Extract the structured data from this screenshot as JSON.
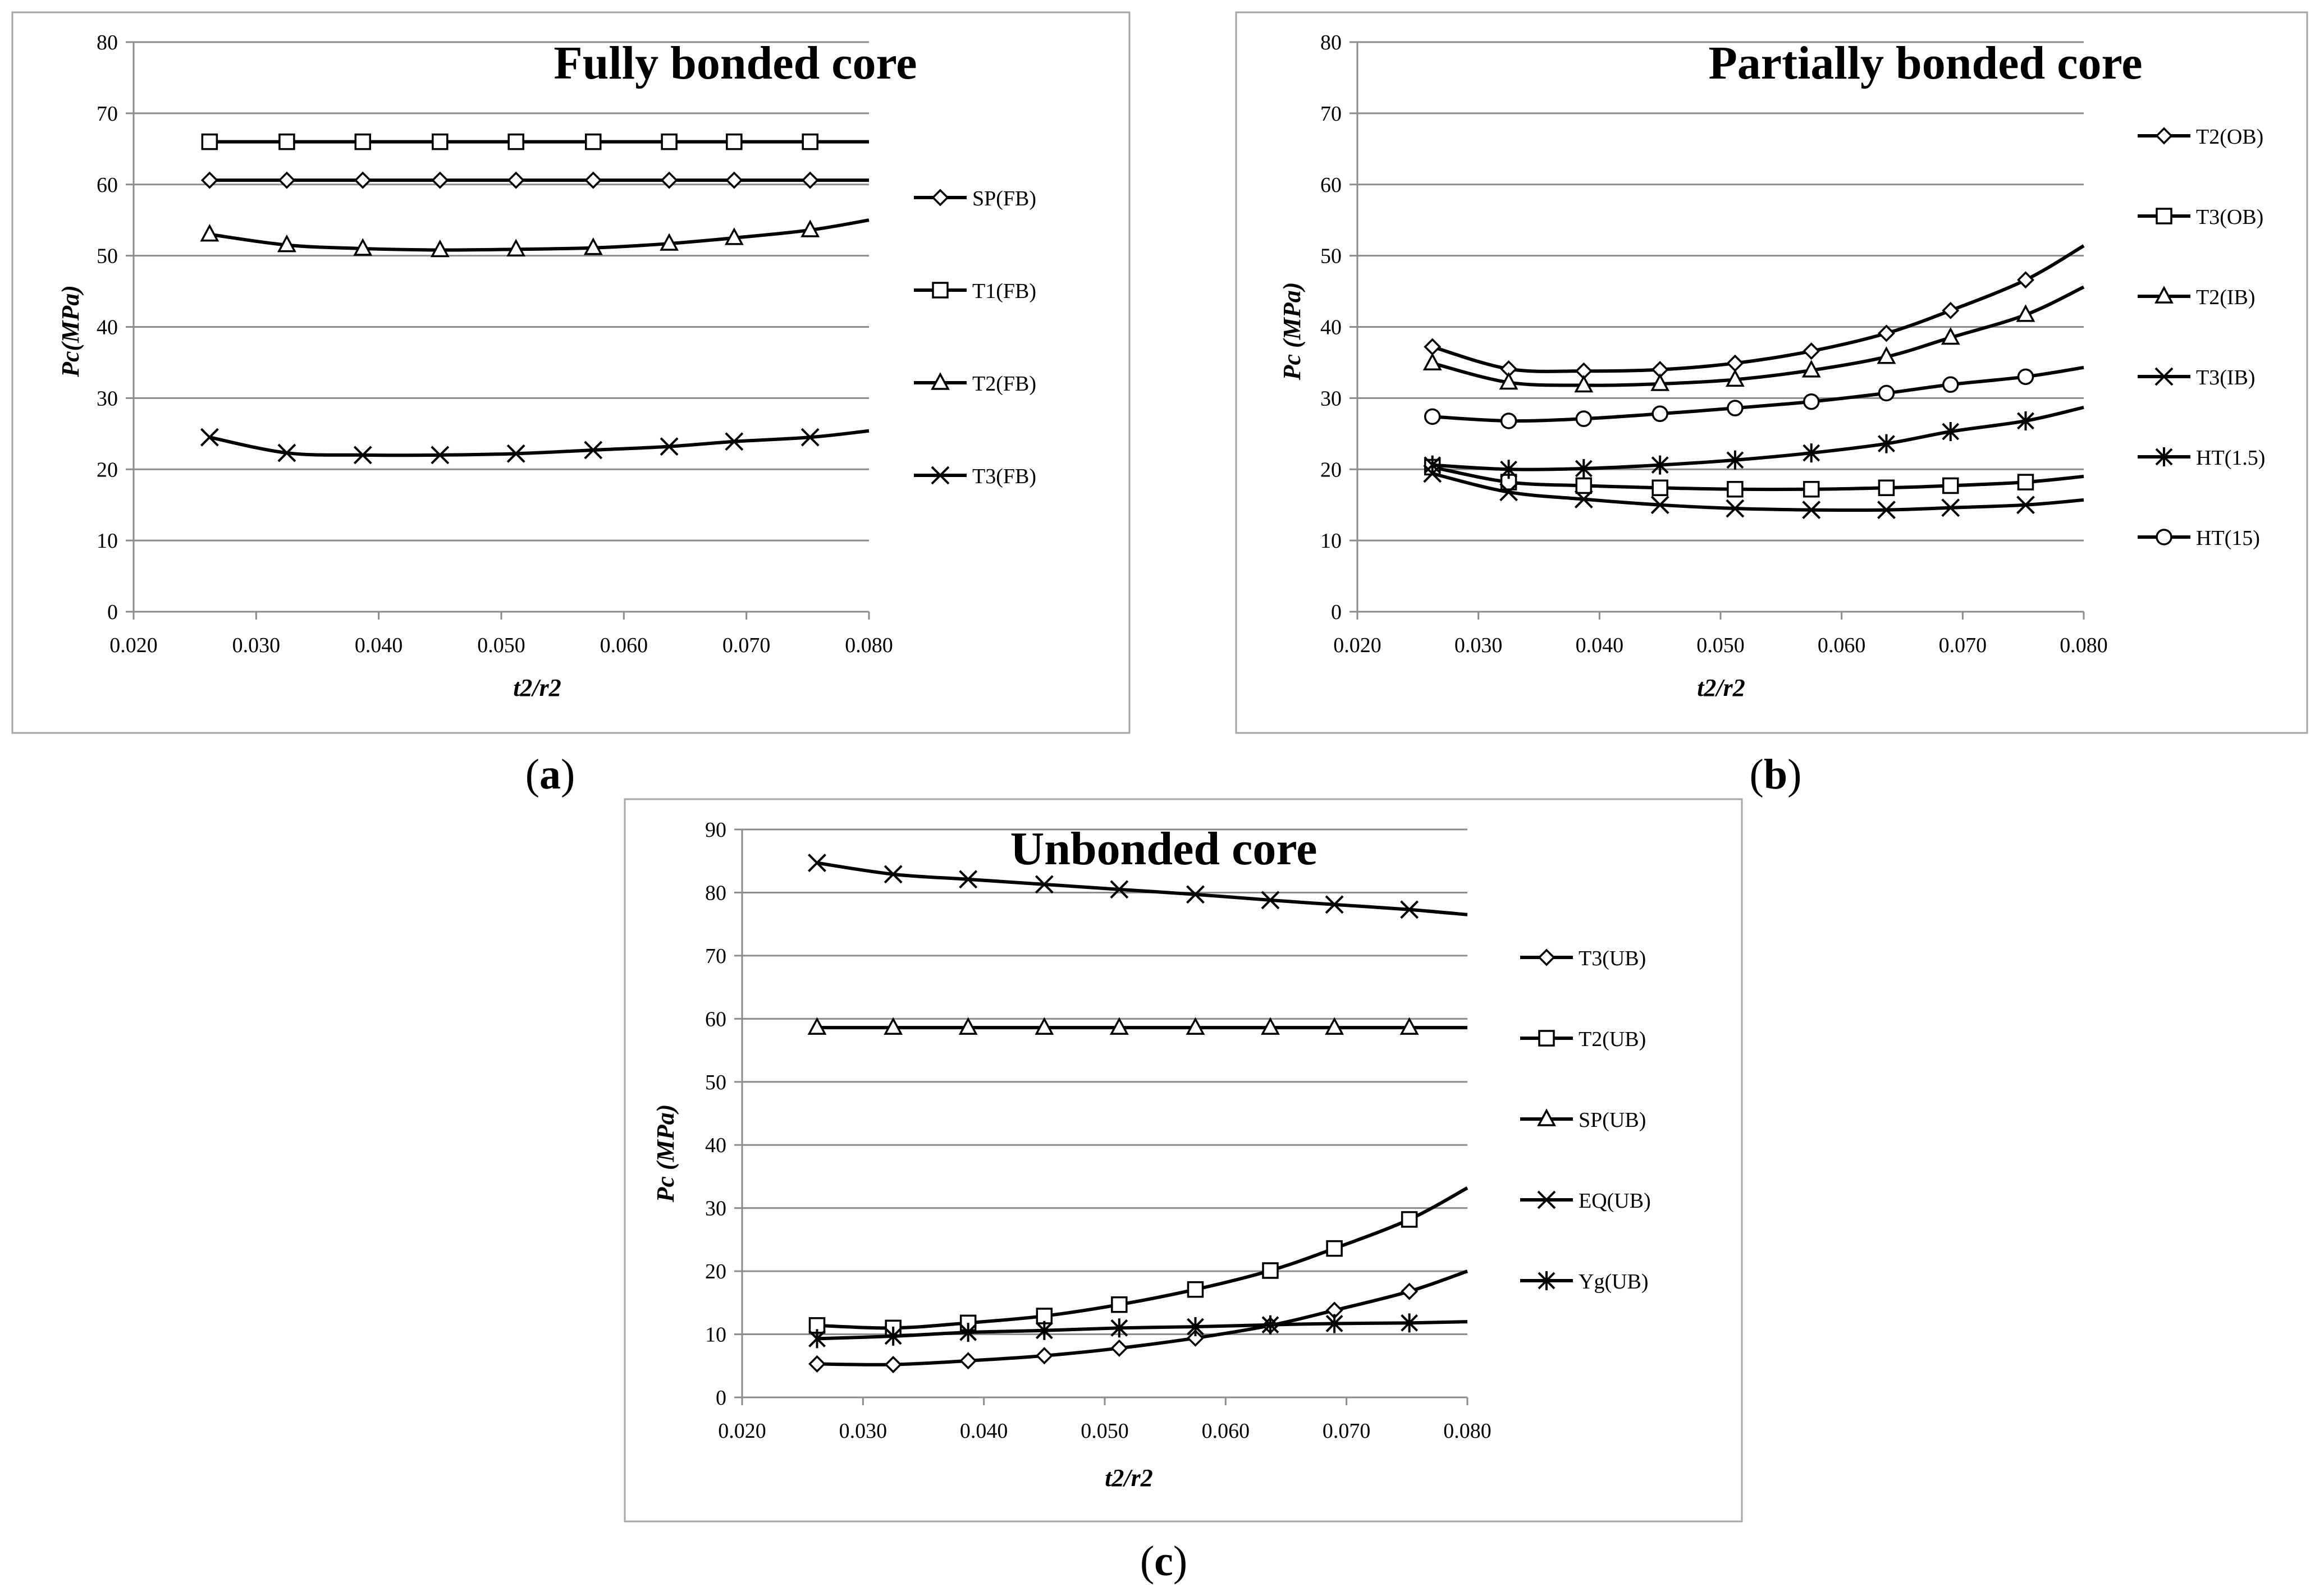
{
  "colors": {
    "line": "#000000",
    "grid": "#8c8c8c",
    "frame": "#a6a6a6",
    "text": "#000000",
    "bg": "#ffffff"
  },
  "panels": [
    {
      "id": "a",
      "caption_letter": "a",
      "caption": "(a)",
      "title": "Fully bonded core"
    },
    {
      "id": "b",
      "caption_letter": "b",
      "caption": "(b)",
      "title": "Partially bonded core"
    },
    {
      "id": "c",
      "caption_letter": "c",
      "caption": "(c)",
      "title": "Unbonded core"
    }
  ],
  "chart_data": [
    {
      "id": "a",
      "type": "line",
      "title": "Fully bonded core",
      "ylabel": "Pc(MPa)",
      "xlabel": "t2/r2",
      "xlim": [
        0.02,
        0.08
      ],
      "ylim": [
        0,
        80
      ],
      "xticks": [
        "0.020",
        "0.030",
        "0.040",
        "0.050",
        "0.060",
        "0.070",
        "0.080"
      ],
      "yticks": [
        "0",
        "10",
        "20",
        "30",
        "40",
        "50",
        "60",
        "70",
        "80"
      ],
      "grid": "horizontal",
      "legend_position": "right",
      "x": [
        0.0262,
        0.0325,
        0.0387,
        0.045,
        0.0512,
        0.0575,
        0.0637,
        0.069,
        0.0752
      ],
      "series": [
        {
          "name": "SP(FB)",
          "marker": "diamond",
          "values": [
            60.6,
            60.6,
            60.6,
            60.6,
            60.6,
            60.6,
            60.6,
            60.6,
            60.6
          ],
          "end_value": 60.6
        },
        {
          "name": "T1(FB)",
          "marker": "square",
          "values": [
            66,
            66,
            66,
            66,
            66,
            66,
            66,
            66,
            66
          ],
          "end_value": 66
        },
        {
          "name": "T2(FB)",
          "marker": "triangle",
          "values": [
            53,
            51.5,
            51,
            50.8,
            50.9,
            51.1,
            51.7,
            52.5,
            53.6
          ],
          "end_value": 55
        },
        {
          "name": "T3(FB)",
          "marker": "x",
          "values": [
            24.5,
            22.3,
            22,
            22,
            22.2,
            22.7,
            23.2,
            23.9,
            24.5
          ],
          "end_value": 25.4
        }
      ]
    },
    {
      "id": "b",
      "type": "line",
      "title": "Partially bonded core",
      "ylabel": "Pc (MPa)",
      "xlabel": "t2/r2",
      "xlim": [
        0.02,
        0.08
      ],
      "ylim": [
        0,
        80
      ],
      "xticks": [
        "0.020",
        "0.030",
        "0.040",
        "0.050",
        "0.060",
        "0.070",
        "0.080"
      ],
      "yticks": [
        "0",
        "10",
        "20",
        "30",
        "40",
        "50",
        "60",
        "70",
        "80"
      ],
      "grid": "horizontal",
      "legend_position": "right",
      "x": [
        0.0262,
        0.0325,
        0.0387,
        0.045,
        0.0512,
        0.0575,
        0.0637,
        0.069,
        0.0752
      ],
      "series": [
        {
          "name": "T2(OB)",
          "marker": "diamond",
          "values": [
            37.2,
            34.1,
            33.8,
            34,
            34.9,
            36.6,
            39.1,
            42.3,
            46.6
          ],
          "end_value": 51.4
        },
        {
          "name": "T3(OB)",
          "marker": "square",
          "values": [
            20.3,
            18.2,
            17.7,
            17.4,
            17.2,
            17.2,
            17.4,
            17.7,
            18.2
          ],
          "end_value": 19
        },
        {
          "name": "T2(IB)",
          "marker": "triangle",
          "values": [
            34.9,
            32.2,
            31.8,
            32,
            32.6,
            33.9,
            35.8,
            38.5,
            41.7
          ],
          "end_value": 45.6
        },
        {
          "name": "T3(IB)",
          "marker": "x",
          "values": [
            19.4,
            16.8,
            15.8,
            15,
            14.5,
            14.3,
            14.3,
            14.6,
            15
          ],
          "end_value": 15.7
        },
        {
          "name": "HT(1.5)",
          "marker": "asterisk",
          "values": [
            20.6,
            20,
            20.1,
            20.6,
            21.3,
            22.3,
            23.6,
            25.3,
            26.8
          ],
          "end_value": 28.7
        },
        {
          "name": "HT(15)",
          "marker": "circle",
          "values": [
            27.4,
            26.8,
            27.1,
            27.8,
            28.6,
            29.5,
            30.7,
            31.9,
            33
          ],
          "end_value": 34.3
        }
      ]
    },
    {
      "id": "c",
      "type": "line",
      "title": "Unbonded core",
      "ylabel": "Pc (MPa)",
      "xlabel": "t2/r2",
      "xlim": [
        0.02,
        0.08
      ],
      "ylim": [
        0,
        90
      ],
      "xticks": [
        "0.020",
        "0.030",
        "0.040",
        "0.050",
        "0.060",
        "0.070",
        "0.080"
      ],
      "yticks": [
        "0",
        "10",
        "20",
        "30",
        "40",
        "50",
        "60",
        "70",
        "80",
        "90"
      ],
      "grid": "horizontal",
      "legend_position": "right",
      "x": [
        0.0262,
        0.0325,
        0.0387,
        0.045,
        0.0512,
        0.0575,
        0.0637,
        0.069,
        0.0752
      ],
      "series": [
        {
          "name": "T3(UB)",
          "marker": "diamond",
          "values": [
            5.3,
            5.2,
            5.8,
            6.6,
            7.8,
            9.4,
            11.4,
            13.8,
            16.8
          ],
          "end_value": 20
        },
        {
          "name": "T2(UB)",
          "marker": "square",
          "values": [
            11.4,
            11,
            11.8,
            12.9,
            14.7,
            17.1,
            20.1,
            23.6,
            28.2
          ],
          "end_value": 33.2
        },
        {
          "name": "SP(UB)",
          "marker": "triangle",
          "values": [
            58.6,
            58.6,
            58.6,
            58.6,
            58.6,
            58.6,
            58.6,
            58.6,
            58.6
          ],
          "end_value": 58.6
        },
        {
          "name": "EQ(UB)",
          "marker": "x",
          "values": [
            84.7,
            82.9,
            82.1,
            81.3,
            80.5,
            79.7,
            78.8,
            78.1,
            77.3
          ],
          "end_value": 76.5
        },
        {
          "name": "Yg(UB)",
          "marker": "asterisk",
          "values": [
            9.3,
            9.7,
            10.3,
            10.6,
            11,
            11.2,
            11.5,
            11.7,
            11.8
          ],
          "end_value": 12
        }
      ]
    }
  ]
}
